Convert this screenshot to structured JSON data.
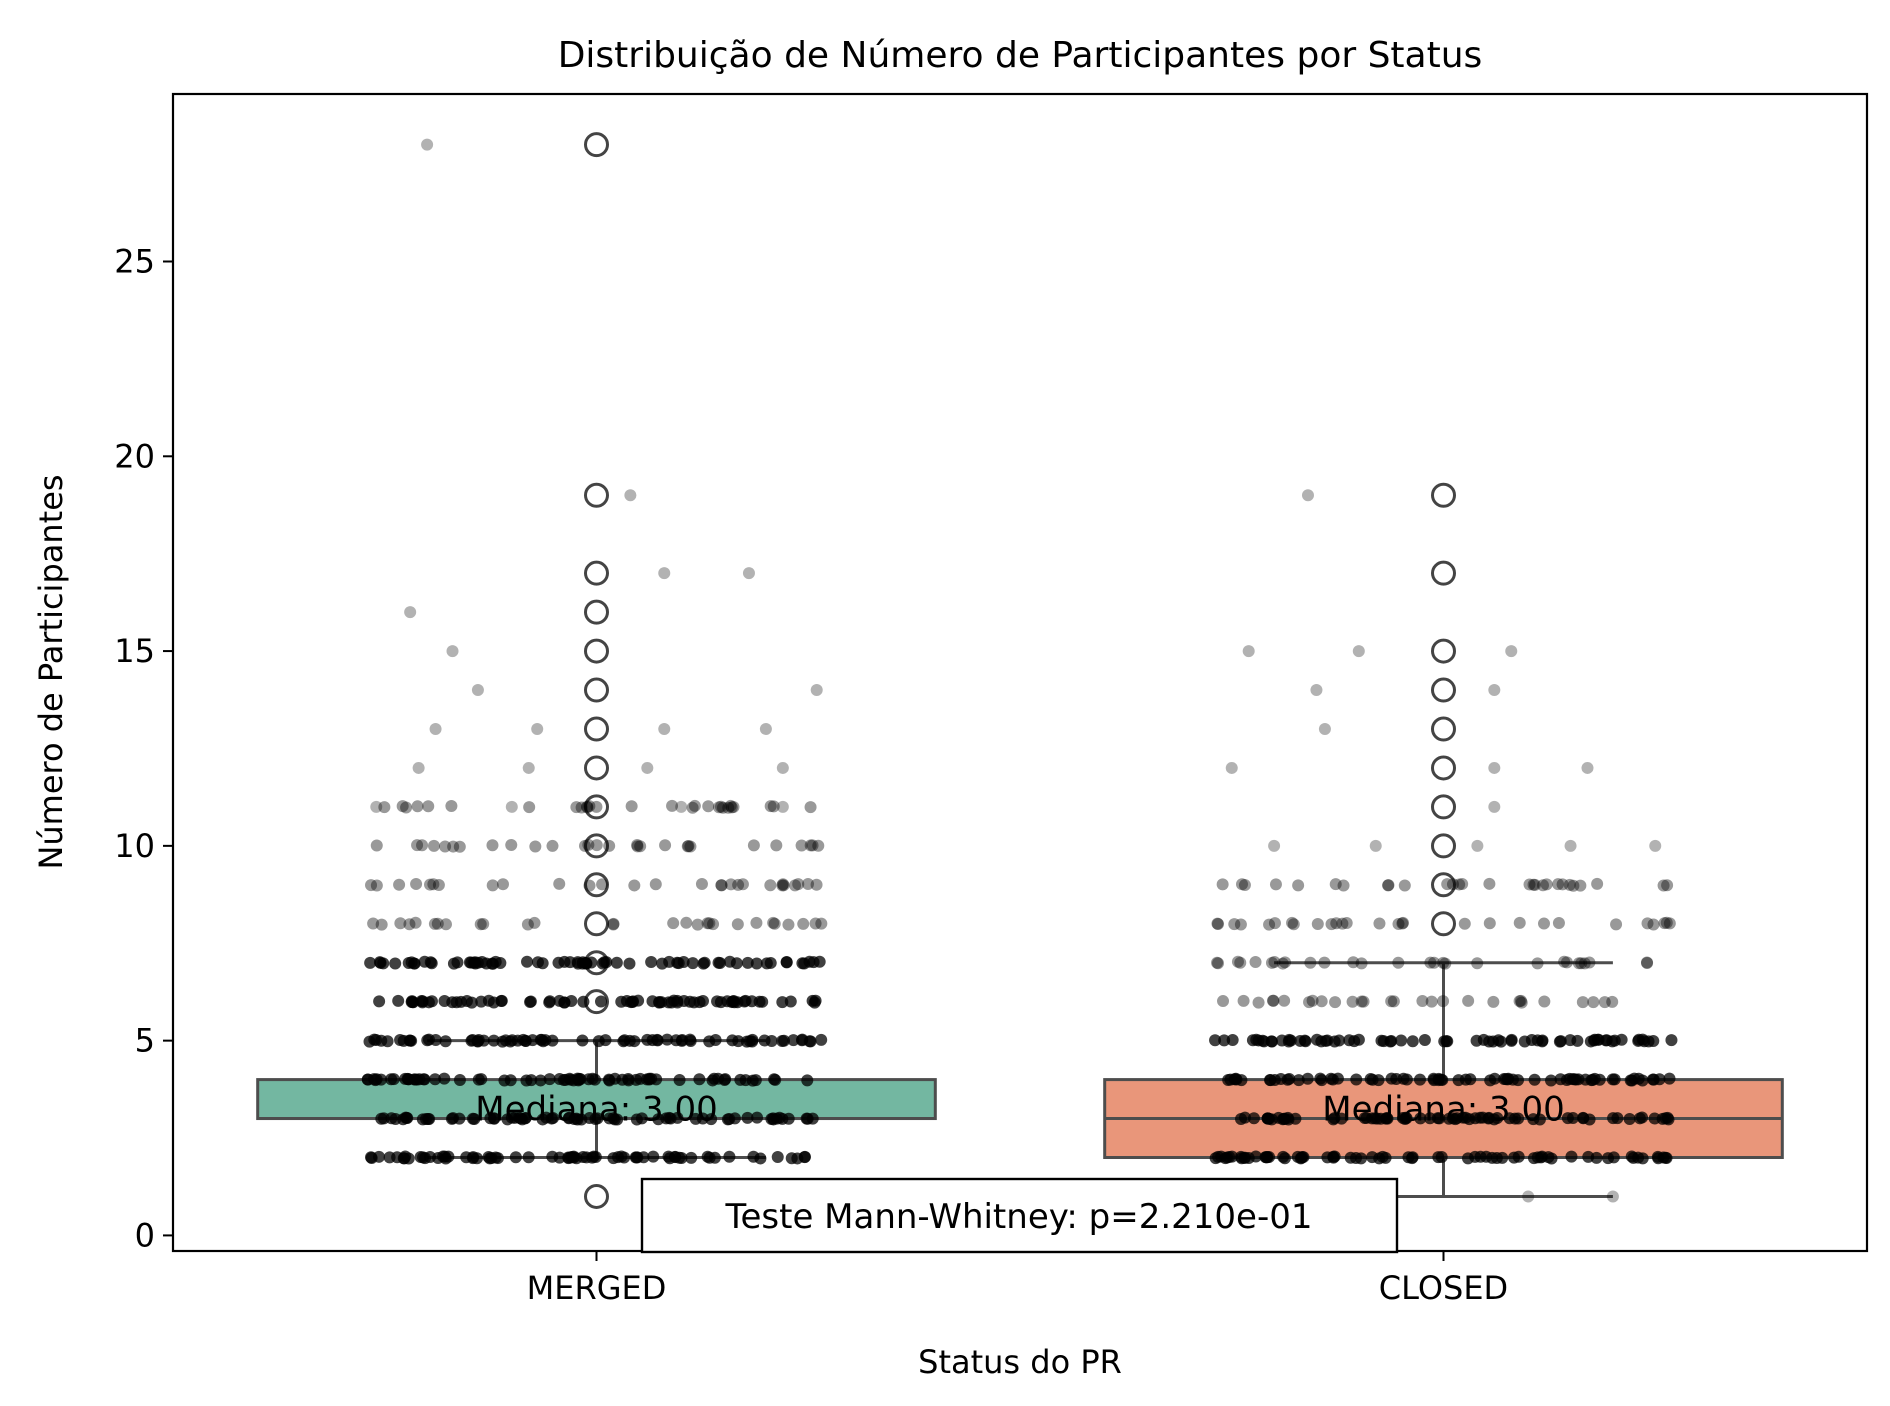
{
  "chart_data": {
    "type": "box",
    "title": "Distribuição de Número de Participantes por Status",
    "xlabel": "Status do PR",
    "ylabel": "Número de Participantes",
    "categories": [
      "MERGED",
      "CLOSED"
    ],
    "ylim": [
      -0.4,
      29.3
    ],
    "yticks": [
      0,
      5,
      10,
      15,
      20,
      25
    ],
    "grid": false,
    "boxes": [
      {
        "name": "MERGED",
        "color": "#73b7a1",
        "q1": 3,
        "median": 3,
        "q3": 4,
        "whisker_low": 2,
        "whisker_high": 5,
        "median_label": "Mediana: 3.00",
        "outliers": [
          1,
          6,
          7,
          8,
          9,
          10,
          11,
          12,
          13,
          14,
          15,
          16,
          17,
          19,
          28
        ],
        "dense_values": [
          2,
          3,
          4,
          5,
          6,
          7
        ],
        "medium_values": [
          8,
          9,
          10,
          11
        ],
        "sparse_points": [
          [
            28,
            -0.2
          ],
          [
            19,
            0.04
          ],
          [
            17,
            0.08
          ],
          [
            17,
            0.18
          ],
          [
            16,
            -0.22
          ],
          [
            15,
            -0.17
          ],
          [
            14,
            -0.14
          ],
          [
            14,
            0.26
          ],
          [
            13,
            -0.19
          ],
          [
            13,
            -0.07
          ],
          [
            13,
            0.08
          ],
          [
            13,
            0.2
          ],
          [
            12,
            -0.21
          ],
          [
            12,
            -0.08
          ],
          [
            12,
            0.06
          ],
          [
            12,
            0.22
          ],
          [
            11,
            -0.26
          ],
          [
            11,
            -0.1
          ],
          [
            11,
            0.1
          ],
          [
            11,
            0.22
          ]
        ]
      },
      {
        "name": "CLOSED",
        "color": "#e9967a",
        "q1": 2,
        "median": 3,
        "q3": 4,
        "whisker_low": 1,
        "whisker_high": 7,
        "median_label": "Mediana: 3.00",
        "outliers": [
          8,
          9,
          10,
          11,
          12,
          13,
          14,
          15,
          17,
          19
        ],
        "dense_values": [
          2,
          3,
          4,
          5
        ],
        "medium_values": [
          6,
          7,
          8,
          9
        ],
        "sparse_points": [
          [
            19,
            -0.16
          ],
          [
            15,
            -0.23
          ],
          [
            15,
            -0.1
          ],
          [
            15,
            0.08
          ],
          [
            14,
            -0.15
          ],
          [
            14,
            0.06
          ],
          [
            13,
            -0.14
          ],
          [
            12,
            -0.25
          ],
          [
            12,
            0.06
          ],
          [
            12,
            0.17
          ],
          [
            11,
            0.06
          ],
          [
            10,
            -0.2
          ],
          [
            10,
            -0.08
          ],
          [
            10,
            0.04
          ],
          [
            10,
            0.15
          ],
          [
            10,
            0.25
          ],
          [
            1,
            -0.24
          ],
          [
            1,
            -0.1
          ],
          [
            1,
            0.1
          ],
          [
            1,
            0.2
          ]
        ]
      }
    ],
    "annotation": "Teste Mann-Whitney: p=2.210e-01"
  }
}
